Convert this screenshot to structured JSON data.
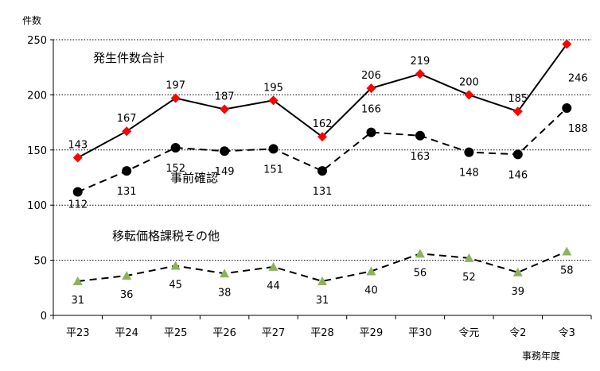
{
  "chart_data": {
    "type": "line",
    "ylabel": "件数",
    "xlabel": "事務年度",
    "ylim": [
      0,
      250
    ],
    "yticks": [
      0,
      50,
      100,
      150,
      200,
      250
    ],
    "grid": "dotted horizontal",
    "categories": [
      "平23",
      "平24",
      "平25",
      "平26",
      "平27",
      "平28",
      "平29",
      "平30",
      "令元",
      "令2",
      "令3"
    ],
    "series": [
      {
        "name": "発生件数合計",
        "values": [
          143,
          167,
          197,
          187,
          195,
          162,
          206,
          219,
          200,
          185,
          246
        ],
        "line": "solid",
        "marker": "diamond",
        "color": "#ff0000",
        "line_color": "#000000"
      },
      {
        "name": "事前確認",
        "values": [
          112,
          131,
          152,
          149,
          151,
          131,
          166,
          163,
          148,
          146,
          188
        ],
        "line": "dashed",
        "marker": "circle",
        "color": "#000000",
        "line_color": "#000000"
      },
      {
        "name": "移転価格課税その他",
        "values": [
          31,
          36,
          45,
          38,
          44,
          31,
          40,
          56,
          52,
          39,
          58
        ],
        "line": "dashed",
        "marker": "triangle",
        "color": "#8db35a",
        "line_color": "#000000"
      }
    ]
  }
}
